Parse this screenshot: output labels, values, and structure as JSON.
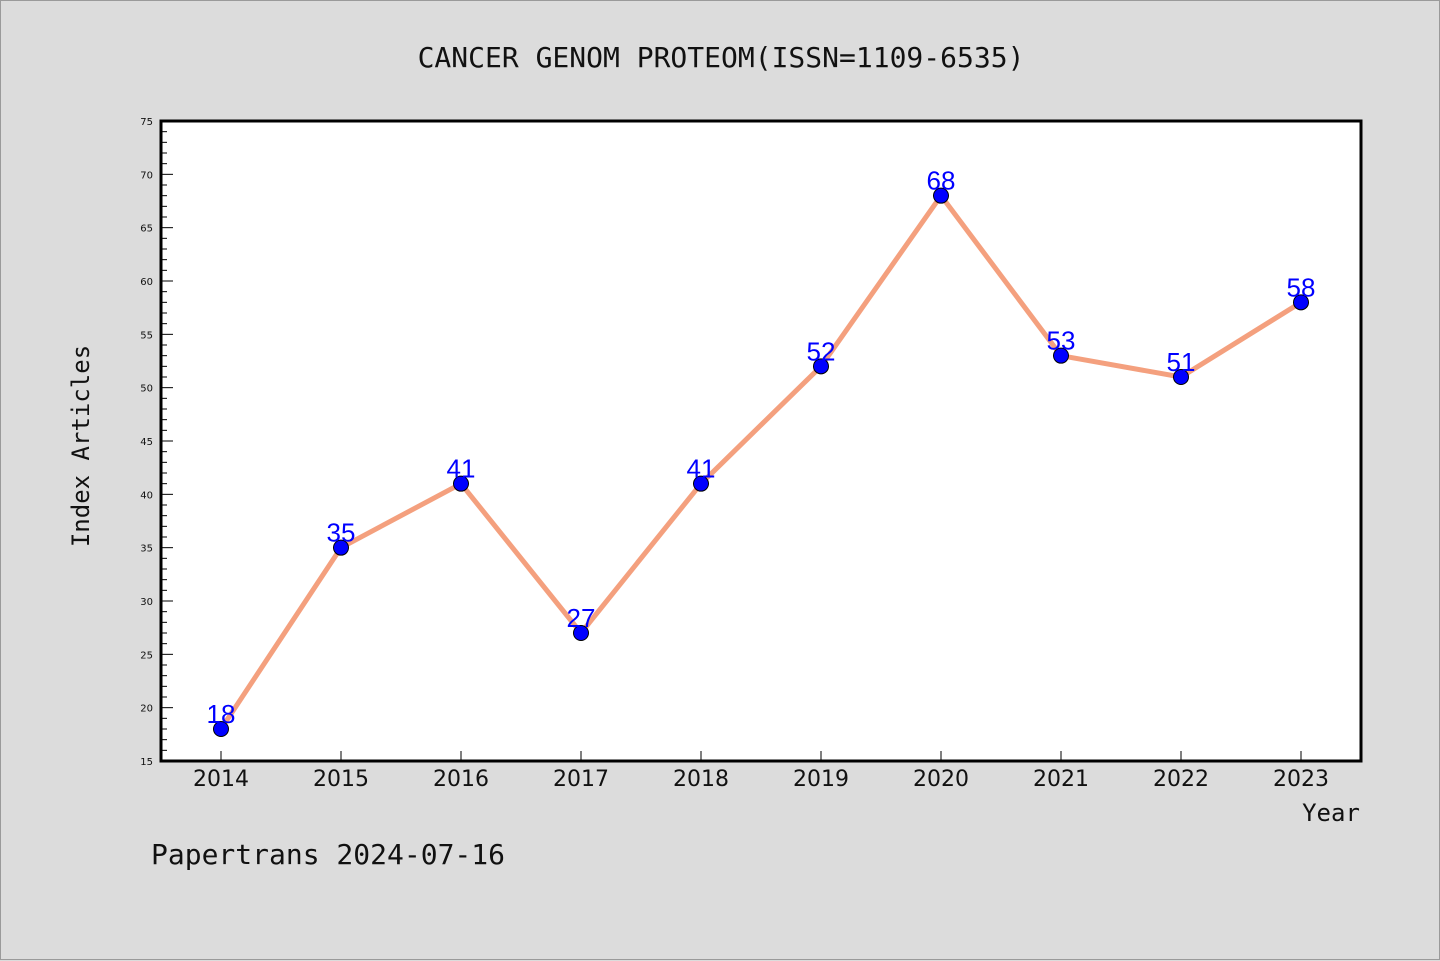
{
  "footer": "Papertrans 2024-07-16",
  "colors": {
    "background": "#dcdcdc",
    "plot_background": "#ffffff",
    "line": "#f4a07e",
    "marker": "#0000ff",
    "data_label": "#0000ff"
  },
  "chart_data": {
    "type": "line",
    "title": "CANCER GENOM PROTEOM(ISSN=1109-6535)",
    "xlabel": "Year",
    "ylabel": "Index Articles",
    "categories": [
      "2014",
      "2015",
      "2016",
      "2017",
      "2018",
      "2019",
      "2020",
      "2021",
      "2022",
      "2023"
    ],
    "series": [
      {
        "values": [
          18,
          35,
          41,
          27,
          41,
          52,
          68,
          53,
          51,
          58
        ]
      }
    ],
    "ylim": [
      15,
      75
    ],
    "yticks": [
      15,
      20,
      25,
      30,
      35,
      40,
      45,
      50,
      55,
      60,
      65,
      70,
      75
    ],
    "grid": false,
    "legend": "none",
    "data_labels": true
  }
}
